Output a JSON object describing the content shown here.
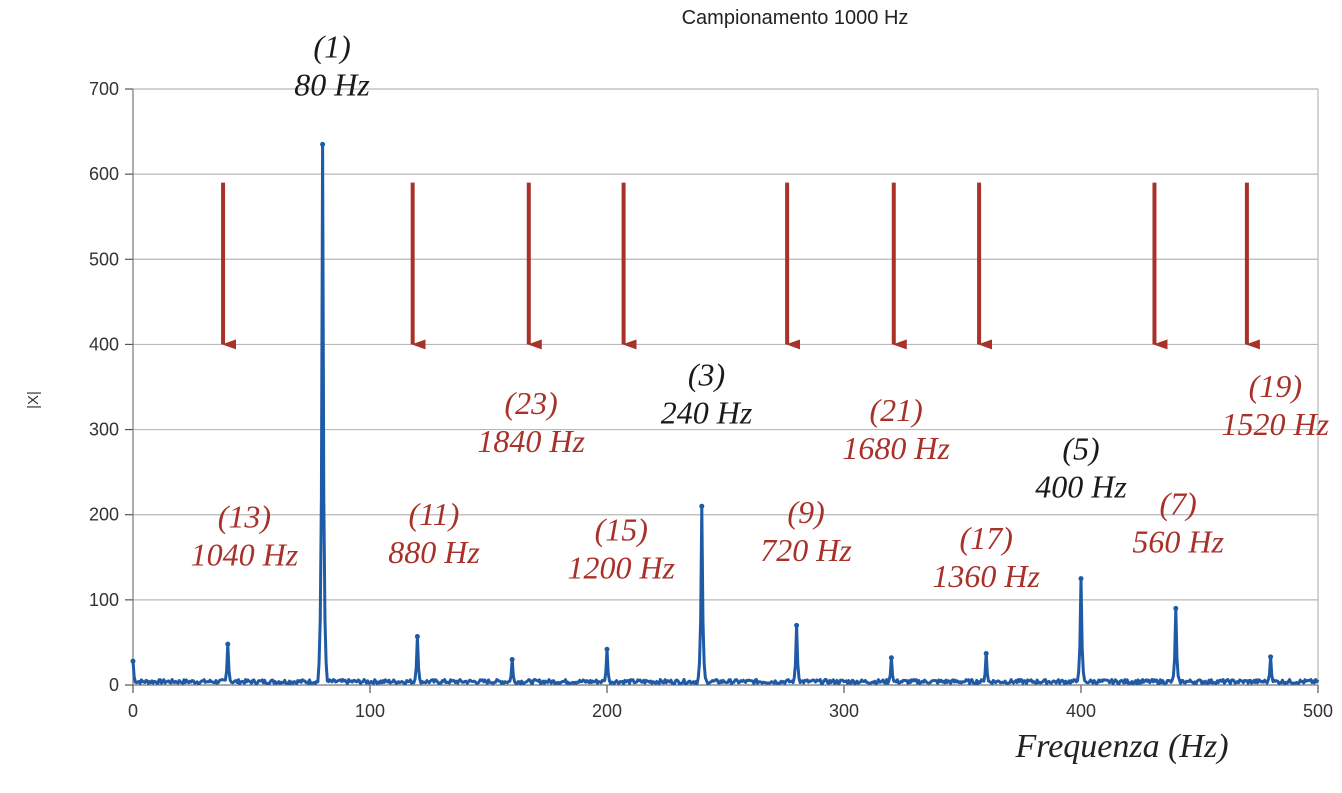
{
  "chart_data": {
    "type": "line",
    "title": "Campionamento 1000 Hz",
    "xlabel": "Frequenza (Hz)",
    "ylabel": "|X|",
    "xlim": [
      0,
      500
    ],
    "ylim": [
      0,
      700
    ],
    "xticks": [
      0,
      100,
      200,
      300,
      400,
      500
    ],
    "yticks": [
      0,
      100,
      200,
      300,
      400,
      500,
      600,
      700
    ],
    "grid": "horizontal",
    "series_color": "#1f5aa6",
    "arrow_color": "#a8312a",
    "label_color_primary": "#1a1a1a",
    "label_color_alias": "#a8312a",
    "baseline": 4,
    "peaks": [
      {
        "x": 0,
        "y": 28
      },
      {
        "x": 40,
        "y": 48
      },
      {
        "x": 80,
        "y": 635
      },
      {
        "x": 120,
        "y": 57
      },
      {
        "x": 160,
        "y": 30
      },
      {
        "x": 200,
        "y": 42
      },
      {
        "x": 240,
        "y": 210
      },
      {
        "x": 280,
        "y": 70
      },
      {
        "x": 320,
        "y": 32
      },
      {
        "x": 360,
        "y": 37
      },
      {
        "x": 400,
        "y": 125
      },
      {
        "x": 440,
        "y": 90
      },
      {
        "x": 480,
        "y": 33
      }
    ],
    "arrows": [
      {
        "x": 38,
        "y_start": 590,
        "y_end": 400
      },
      {
        "x": 118,
        "y_start": 590,
        "y_end": 400
      },
      {
        "x": 167,
        "y_start": 590,
        "y_end": 400
      },
      {
        "x": 207,
        "y_start": 590,
        "y_end": 400
      },
      {
        "x": 276,
        "y_start": 590,
        "y_end": 400
      },
      {
        "x": 321,
        "y_start": 590,
        "y_end": 400
      },
      {
        "x": 357,
        "y_start": 590,
        "y_end": 400
      },
      {
        "x": 431,
        "y_start": 590,
        "y_end": 400
      },
      {
        "x": 470,
        "y_start": 590,
        "y_end": 400
      }
    ],
    "annotations": [
      {
        "order": "(1)",
        "freq": "80 Hz",
        "x": 84,
        "y": 737,
        "kind": "primary"
      },
      {
        "order": "(3)",
        "freq": "240 Hz",
        "x": 242,
        "y": 352,
        "kind": "primary"
      },
      {
        "order": "(5)",
        "freq": "400 Hz",
        "x": 400,
        "y": 265,
        "kind": "primary"
      },
      {
        "order": "(13)",
        "freq": "1040 Hz",
        "x": 47,
        "y": 185,
        "kind": "alias"
      },
      {
        "order": "(11)",
        "freq": "880 Hz",
        "x": 127,
        "y": 188,
        "kind": "alias"
      },
      {
        "order": "(23)",
        "freq": "1840 Hz",
        "x": 168,
        "y": 318,
        "kind": "alias"
      },
      {
        "order": "(15)",
        "freq": "1200 Hz",
        "x": 206,
        "y": 170,
        "kind": "alias"
      },
      {
        "order": "(9)",
        "freq": "720 Hz",
        "x": 284,
        "y": 190,
        "kind": "alias"
      },
      {
        "order": "(21)",
        "freq": "1680 Hz",
        "x": 322,
        "y": 310,
        "kind": "alias"
      },
      {
        "order": "(17)",
        "freq": "1360 Hz",
        "x": 360,
        "y": 160,
        "kind": "alias"
      },
      {
        "order": "(7)",
        "freq": "560 Hz",
        "x": 441,
        "y": 200,
        "kind": "alias"
      },
      {
        "order": "(19)",
        "freq": "1520 Hz",
        "x": 482,
        "y": 338,
        "kind": "alias"
      }
    ]
  }
}
